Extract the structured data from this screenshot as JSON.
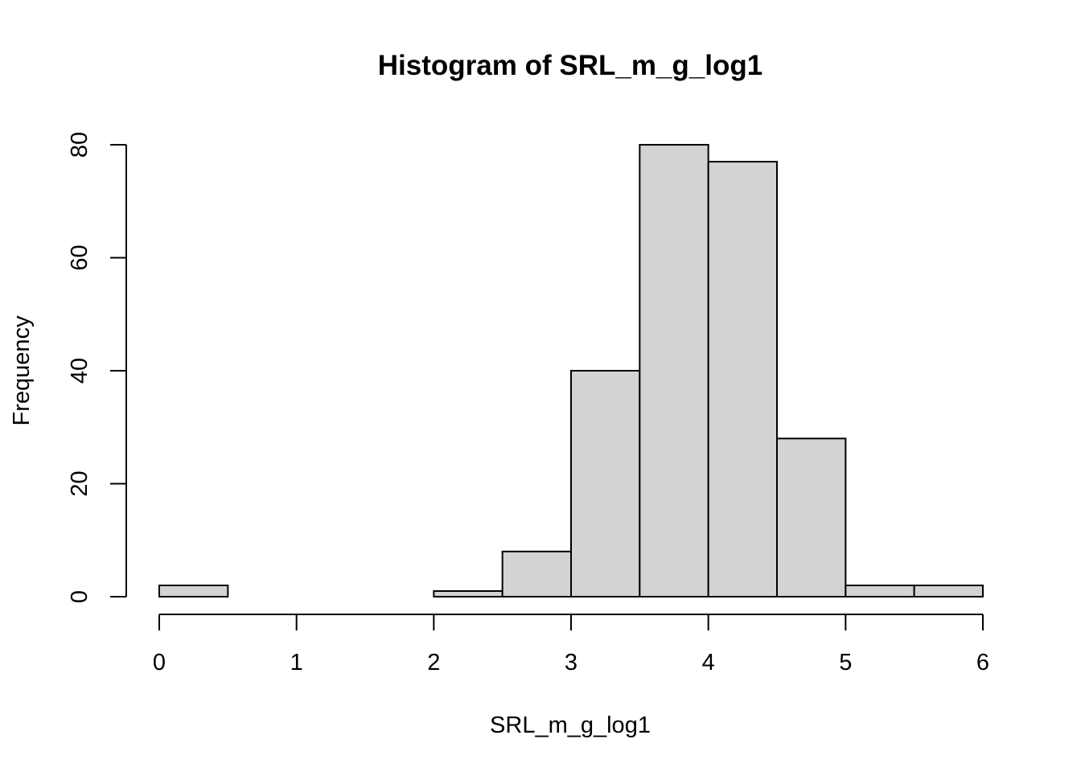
{
  "chart_data": {
    "type": "bar",
    "title": "Histogram of SRL_m_g_log1",
    "xlabel": "SRL_m_g_log1",
    "ylabel": "Frequency",
    "bin_edges": [
      0,
      0.5,
      1,
      1.5,
      2,
      2.5,
      3,
      3.5,
      4,
      4.5,
      5,
      5.5,
      6
    ],
    "values": [
      2,
      0,
      0,
      0,
      1,
      8,
      40,
      80,
      77,
      28,
      2,
      2
    ],
    "xlim": [
      0,
      6
    ],
    "ylim": [
      0,
      80
    ],
    "x_ticks": [
      0,
      1,
      2,
      3,
      4,
      5,
      6
    ],
    "x_tick_labels": [
      "0",
      "1",
      "2",
      "3",
      "4",
      "5",
      "6"
    ],
    "y_ticks": [
      0,
      20,
      40,
      60,
      80
    ],
    "y_tick_labels": [
      "0",
      "20",
      "40",
      "60",
      "80"
    ],
    "grid": false,
    "bar_color": "#D3D3D3",
    "edge_color": "#000000"
  }
}
